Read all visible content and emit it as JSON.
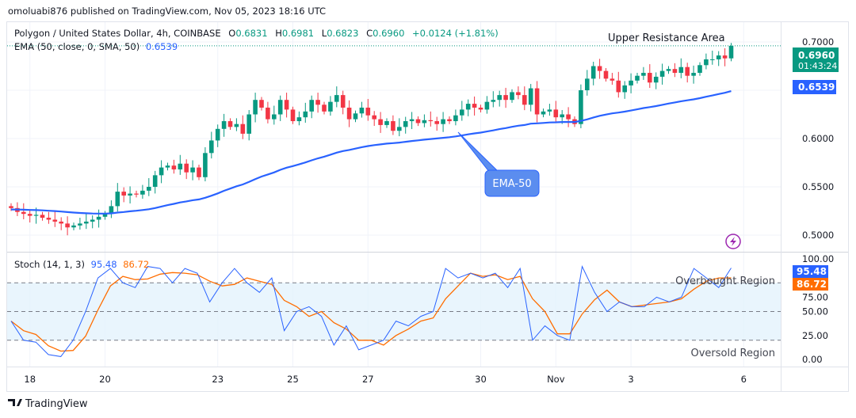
{
  "publish_line": "omoluabi876 published on TradingView.com, Nov 05, 2023 18:16 UTC",
  "legend": {
    "symbol": "Polygon / United States Dollar, 4h, COINBASE",
    "o_label": "O",
    "o": "0.6831",
    "h_label": "H",
    "h": "0.6981",
    "l_label": "L",
    "l": "0.6823",
    "c_label": "C",
    "c": "0.6960",
    "change": "+0.0124 (+1.81%)",
    "ema_label": "EMA (50, close, 0, SMA, 50)",
    "ema_value": "0.6539"
  },
  "price_axis": {
    "ticks": [
      "0.7000",
      "0.6000",
      "0.5500",
      "0.5000"
    ],
    "tick_values": [
      0.7,
      0.6,
      0.55,
      0.5
    ],
    "last_price": "0.6960",
    "countdown": "01:43:24",
    "ema_badge": "0.6539"
  },
  "stoch": {
    "label": "Stoch (14, 1, 3)",
    "k_value": "95.48",
    "d_value": "86.72",
    "ticks": [
      "100.00",
      "75.00",
      "50.00",
      "25.00",
      "0.00"
    ],
    "tick_values": [
      100,
      75,
      50,
      25,
      0
    ],
    "upper_band": 80,
    "middle_band": 50,
    "lower_band": 20,
    "k": [
      40,
      20,
      18,
      5,
      3,
      20,
      50,
      85,
      95,
      80,
      75,
      97,
      95,
      80,
      95,
      90,
      60,
      80,
      95,
      80,
      70,
      85,
      30,
      50,
      55,
      45,
      15,
      35,
      10,
      15,
      20,
      40,
      35,
      45,
      50,
      95,
      85,
      90,
      85,
      90,
      75,
      95,
      20,
      35,
      25,
      20,
      97,
      70,
      50,
      60,
      55,
      55,
      65,
      60,
      65,
      95,
      85,
      75,
      95.48
    ]
  },
  "time_axis": {
    "labels": [
      "18",
      "20",
      "23",
      "25",
      "27",
      "30",
      "Nov",
      "3",
      "6"
    ],
    "candle_index": [
      3,
      15,
      33,
      45,
      57,
      75,
      87,
      99,
      117
    ]
  },
  "chart_data": {
    "type": "candlestick",
    "interval": "4h",
    "ylim": [
      0.49,
      0.71
    ],
    "closes": [
      0.528,
      0.524,
      0.522,
      0.52,
      0.521,
      0.518,
      0.516,
      0.514,
      0.512,
      0.508,
      0.51,
      0.512,
      0.514,
      0.516,
      0.519,
      0.522,
      0.53,
      0.545,
      0.541,
      0.543,
      0.542,
      0.546,
      0.55,
      0.562,
      0.57,
      0.572,
      0.568,
      0.574,
      0.565,
      0.57,
      0.56,
      0.585,
      0.598,
      0.61,
      0.618,
      0.612,
      0.615,
      0.605,
      0.625,
      0.64,
      0.632,
      0.62,
      0.625,
      0.64,
      0.63,
      0.618,
      0.622,
      0.628,
      0.64,
      0.635,
      0.628,
      0.638,
      0.645,
      0.632,
      0.62,
      0.626,
      0.632,
      0.624,
      0.62,
      0.614,
      0.618,
      0.608,
      0.612,
      0.618,
      0.62,
      0.616,
      0.619,
      0.618,
      0.615,
      0.62,
      0.618,
      0.624,
      0.63,
      0.636,
      0.632,
      0.63,
      0.638,
      0.64,
      0.645,
      0.64,
      0.648,
      0.645,
      0.635,
      0.652,
      0.625,
      0.628,
      0.63,
      0.622,
      0.625,
      0.62,
      0.615,
      0.65,
      0.662,
      0.675,
      0.67,
      0.662,
      0.66,
      0.648,
      0.655,
      0.66,
      0.665,
      0.668,
      0.658,
      0.664,
      0.67,
      0.672,
      0.668,
      0.674,
      0.665,
      0.668,
      0.676,
      0.682,
      0.682,
      0.686,
      0.683,
      0.696
    ],
    "ema_period": 50,
    "ema_seed": 0.5265
  },
  "annotations": {
    "resistance": "Upper Resistance Area",
    "ema_callout": "EMA-50",
    "overbought": "Overbought Region",
    "oversold": "Oversold Region"
  },
  "colors": {
    "up": "#089981",
    "down": "#f23645",
    "ema": "#2962ff",
    "k": "#2962ff",
    "d": "#ff6d00",
    "band": "#e3f2fd",
    "callout": "#5b8def",
    "lightning": "#9c27b0"
  },
  "footer": {
    "brand": "TradingView"
  }
}
